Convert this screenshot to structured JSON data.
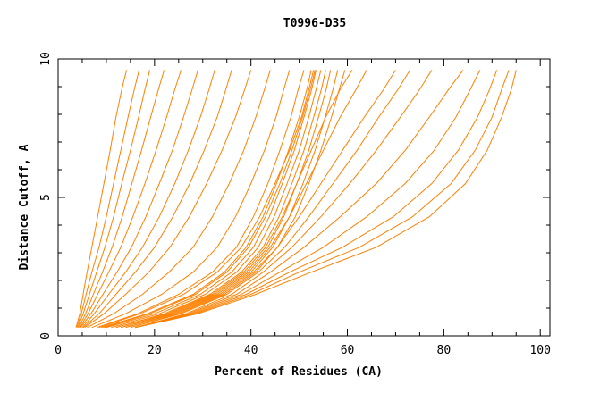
{
  "chart_data": {
    "type": "line",
    "title": "T0996-D35",
    "xlabel": "Percent of Residues (CA)",
    "ylabel": "Distance Cutoff, A",
    "xlim": [
      0,
      102
    ],
    "ylim": [
      0,
      10
    ],
    "x_ticks": [
      0,
      20,
      40,
      60,
      80,
      100
    ],
    "y_ticks": [
      0,
      5,
      10
    ],
    "grid": false,
    "line_color": "#ff8000",
    "series": [
      {
        "x": [
          3.7,
          4.5,
          5.2,
          6.0,
          7.0,
          8.2,
          9.5,
          10.8,
          12.0,
          13.2,
          14.2
        ],
        "y": [
          0.3,
          0.8,
          1.5,
          2.3,
          3.2,
          4.3,
          5.5,
          6.7,
          7.9,
          8.9,
          9.6
        ]
      },
      {
        "x": [
          3.9,
          4.8,
          5.8,
          7.0,
          8.5,
          10.0,
          11.5,
          13.0,
          14.5,
          15.8,
          16.8
        ],
        "y": [
          0.3,
          0.8,
          1.5,
          2.3,
          3.2,
          4.3,
          5.5,
          6.7,
          7.9,
          8.9,
          9.6
        ]
      },
      {
        "x": [
          4.1,
          5.2,
          6.5,
          8.0,
          9.7,
          11.5,
          13.2,
          15.0,
          16.7,
          18.0,
          19.0
        ],
        "y": [
          0.3,
          0.8,
          1.5,
          2.3,
          3.2,
          4.3,
          5.5,
          6.7,
          7.9,
          8.9,
          9.6
        ]
      },
      {
        "x": [
          4.3,
          5.7,
          7.3,
          9.2,
          11.2,
          13.3,
          15.3,
          17.3,
          19.2,
          20.8,
          22.0
        ],
        "y": [
          0.3,
          0.8,
          1.5,
          2.3,
          3.2,
          4.3,
          5.5,
          6.7,
          7.9,
          8.9,
          9.6
        ]
      },
      {
        "x": [
          4.5,
          6.2,
          8.2,
          10.5,
          13.0,
          15.5,
          18.0,
          20.3,
          22.5,
          24.2,
          25.5
        ],
        "y": [
          0.3,
          0.8,
          1.5,
          2.3,
          3.2,
          4.3,
          5.5,
          6.7,
          7.9,
          8.9,
          9.6
        ]
      },
      {
        "x": [
          4.7,
          6.8,
          9.3,
          12.2,
          15.2,
          18.2,
          21.0,
          23.7,
          26.0,
          27.8,
          29.0
        ],
        "y": [
          0.3,
          0.8,
          1.5,
          2.3,
          3.2,
          4.3,
          5.5,
          6.7,
          7.9,
          8.9,
          9.6
        ]
      },
      {
        "x": [
          5.0,
          7.5,
          10.5,
          14.0,
          17.5,
          21.0,
          24.2,
          27.0,
          29.5,
          31.3,
          32.5
        ],
        "y": [
          0.3,
          0.8,
          1.5,
          2.3,
          3.2,
          4.3,
          5.5,
          6.7,
          7.9,
          8.9,
          9.6
        ]
      },
      {
        "x": [
          5.2,
          8.5,
          12.0,
          16.0,
          20.0,
          23.8,
          27.3,
          30.3,
          33.0,
          34.8,
          36.0
        ],
        "y": [
          0.3,
          0.8,
          1.5,
          2.3,
          3.2,
          4.3,
          5.5,
          6.7,
          7.9,
          8.9,
          9.6
        ]
      },
      {
        "x": [
          5.5,
          9.5,
          14.0,
          18.8,
          23.2,
          27.2,
          30.8,
          34.0,
          36.8,
          38.7,
          40.0
        ],
        "y": [
          0.3,
          0.8,
          1.5,
          2.3,
          3.2,
          4.3,
          5.5,
          6.7,
          7.9,
          8.9,
          9.6
        ]
      },
      {
        "x": [
          6.0,
          11.5,
          17.5,
          23.0,
          28.0,
          32.0,
          35.5,
          38.5,
          41.0,
          42.8,
          44.0
        ],
        "y": [
          0.3,
          0.8,
          1.5,
          2.3,
          3.2,
          4.3,
          5.5,
          6.7,
          7.9,
          8.9,
          9.6
        ]
      },
      {
        "x": [
          7.0,
          14.0,
          21.5,
          28.0,
          33.0,
          36.8,
          40.0,
          42.8,
          45.2,
          46.8,
          48.0
        ],
        "y": [
          0.3,
          0.8,
          1.5,
          2.3,
          3.2,
          4.3,
          5.5,
          6.7,
          7.9,
          8.9,
          9.6
        ]
      },
      {
        "x": [
          8.0,
          16.5,
          25.0,
          32.0,
          37.0,
          40.5,
          43.5,
          46.0,
          48.3,
          49.8,
          51.0
        ],
        "y": [
          0.3,
          0.8,
          1.5,
          2.3,
          3.2,
          4.3,
          5.5,
          6.7,
          7.9,
          8.9,
          9.6
        ]
      },
      {
        "x": [
          9.0,
          18.5,
          28.0,
          34.5,
          39.0,
          42.5,
          45.3,
          47.8,
          50.0,
          51.6,
          52.5
        ],
        "y": [
          0.3,
          0.8,
          1.5,
          2.3,
          3.2,
          4.3,
          5.5,
          6.7,
          7.9,
          8.9,
          9.6
        ]
      },
      {
        "x": [
          10.0,
          20.0,
          29.5,
          36.0,
          40.5,
          43.8,
          46.5,
          49.0,
          51.0,
          52.6,
          53.5
        ],
        "y": [
          0.3,
          0.8,
          1.5,
          2.3,
          3.2,
          4.3,
          5.5,
          6.7,
          7.9,
          8.9,
          9.6
        ]
      },
      {
        "x": [
          11.0,
          21.0,
          30.5,
          37.0,
          41.5,
          44.8,
          47.5,
          50.0,
          52.0,
          53.5,
          54.5
        ],
        "y": [
          0.3,
          0.8,
          1.5,
          2.3,
          3.2,
          4.3,
          5.5,
          6.7,
          7.9,
          8.9,
          9.6
        ]
      },
      {
        "x": [
          12.0,
          22.0,
          31.5,
          38.0,
          42.5,
          45.8,
          48.5,
          51.0,
          53.0,
          54.6,
          55.5
        ],
        "y": [
          0.3,
          0.8,
          1.5,
          2.3,
          3.2,
          4.3,
          5.5,
          6.7,
          7.9,
          8.9,
          9.6
        ]
      },
      {
        "x": [
          13.0,
          23.0,
          32.5,
          39.0,
          43.5,
          46.8,
          49.5,
          52.0,
          54.0,
          55.6,
          56.5
        ],
        "y": [
          0.3,
          0.8,
          1.5,
          2.3,
          3.2,
          4.3,
          5.5,
          6.7,
          7.9,
          8.9,
          9.6
        ]
      },
      {
        "x": [
          14.0,
          24.0,
          33.5,
          40.0,
          44.5,
          48.0,
          50.8,
          53.3,
          55.4,
          57.0,
          58.0
        ],
        "y": [
          0.3,
          0.8,
          1.5,
          2.3,
          3.2,
          4.3,
          5.5,
          6.7,
          7.9,
          8.9,
          9.6
        ]
      },
      {
        "x": [
          15.0,
          25.0,
          34.5,
          41.0,
          45.5,
          49.2,
          52.0,
          54.5,
          56.7,
          58.3,
          59.5
        ],
        "y": [
          0.3,
          0.8,
          1.5,
          2.3,
          3.2,
          4.3,
          5.5,
          6.7,
          7.9,
          8.9,
          9.6
        ]
      },
      {
        "x": [
          8.5,
          17.0,
          26.0,
          33.0,
          38.0,
          41.8,
          45.0,
          48.0,
          50.5,
          52.0,
          53.0
        ],
        "y": [
          0.3,
          0.8,
          1.5,
          2.3,
          3.2,
          4.3,
          5.5,
          6.7,
          7.9,
          8.9,
          9.6
        ]
      },
      {
        "x": [
          9.5,
          19.0,
          28.5,
          35.0,
          39.5,
          43.0,
          46.0,
          48.5,
          50.7,
          52.3,
          53.3
        ],
        "y": [
          0.3,
          0.8,
          1.5,
          2.3,
          3.2,
          4.3,
          5.5,
          6.7,
          7.9,
          8.9,
          9.6
        ]
      },
      {
        "x": [
          12.0,
          22.5,
          32.0,
          38.5,
          43.0,
          46.5,
          49.5,
          52.5,
          55.5,
          58.5,
          61.0
        ],
        "y": [
          0.3,
          0.8,
          1.5,
          2.3,
          3.2,
          4.3,
          5.5,
          6.7,
          7.9,
          8.9,
          9.6
        ]
      },
      {
        "x": [
          13.0,
          23.5,
          33.0,
          39.5,
          44.0,
          48.0,
          51.5,
          55.0,
          58.5,
          61.8,
          64.0
        ],
        "y": [
          0.3,
          0.8,
          1.5,
          2.3,
          3.2,
          4.3,
          5.5,
          6.7,
          7.9,
          8.9,
          9.6
        ]
      },
      {
        "x": [
          14.0,
          24.5,
          34.0,
          40.5,
          45.5,
          50.0,
          54.5,
          59.0,
          63.5,
          67.5,
          70.0
        ],
        "y": [
          0.3,
          0.8,
          1.5,
          2.3,
          3.2,
          4.3,
          5.5,
          6.7,
          7.9,
          8.9,
          9.6
        ]
      },
      {
        "x": [
          15.0,
          25.5,
          35.0,
          41.5,
          47.0,
          52.0,
          57.0,
          62.0,
          66.5,
          70.5,
          73.0
        ],
        "y": [
          0.3,
          0.8,
          1.5,
          2.3,
          3.2,
          4.3,
          5.5,
          6.7,
          7.9,
          8.9,
          9.6
        ]
      },
      {
        "x": [
          16.0,
          26.5,
          36.0,
          42.5,
          48.5,
          54.5,
          60.5,
          66.0,
          71.0,
          75.0,
          77.5
        ],
        "y": [
          0.3,
          0.8,
          1.5,
          2.3,
          3.2,
          4.3,
          5.5,
          6.7,
          7.9,
          8.9,
          9.6
        ]
      },
      {
        "x": [
          16.0,
          27.0,
          37.0,
          44.0,
          51.0,
          58.5,
          66.0,
          72.0,
          77.0,
          81.0,
          84.0
        ],
        "y": [
          0.3,
          0.8,
          1.5,
          2.3,
          3.2,
          4.3,
          5.5,
          6.7,
          7.9,
          8.9,
          9.6
        ]
      },
      {
        "x": [
          16.0,
          27.5,
          38.0,
          46.0,
          55.0,
          64.0,
          72.0,
          78.0,
          82.5,
          85.5,
          87.5
        ],
        "y": [
          0.3,
          0.8,
          1.5,
          2.3,
          3.2,
          4.3,
          5.5,
          6.7,
          7.9,
          8.9,
          9.6
        ]
      },
      {
        "x": [
          16.0,
          28.0,
          39.0,
          48.0,
          59.0,
          69.5,
          77.5,
          83.0,
          87.0,
          89.5,
          91.0
        ],
        "y": [
          0.3,
          0.8,
          1.5,
          2.3,
          3.2,
          4.3,
          5.5,
          6.7,
          7.9,
          8.9,
          9.6
        ]
      },
      {
        "x": [
          16.0,
          28.5,
          40.0,
          50.0,
          62.5,
          73.5,
          81.5,
          86.5,
          90.0,
          92.0,
          93.5
        ],
        "y": [
          0.3,
          0.8,
          1.5,
          2.3,
          3.2,
          4.3,
          5.5,
          6.7,
          7.9,
          8.9,
          9.6
        ]
      },
      {
        "x": [
          16.0,
          29.0,
          41.0,
          52.5,
          66.0,
          77.0,
          84.5,
          89.0,
          92.0,
          94.0,
          95.0
        ],
        "y": [
          0.3,
          0.8,
          1.5,
          2.3,
          3.2,
          4.3,
          5.5,
          6.7,
          7.9,
          8.9,
          9.6
        ]
      }
    ]
  }
}
